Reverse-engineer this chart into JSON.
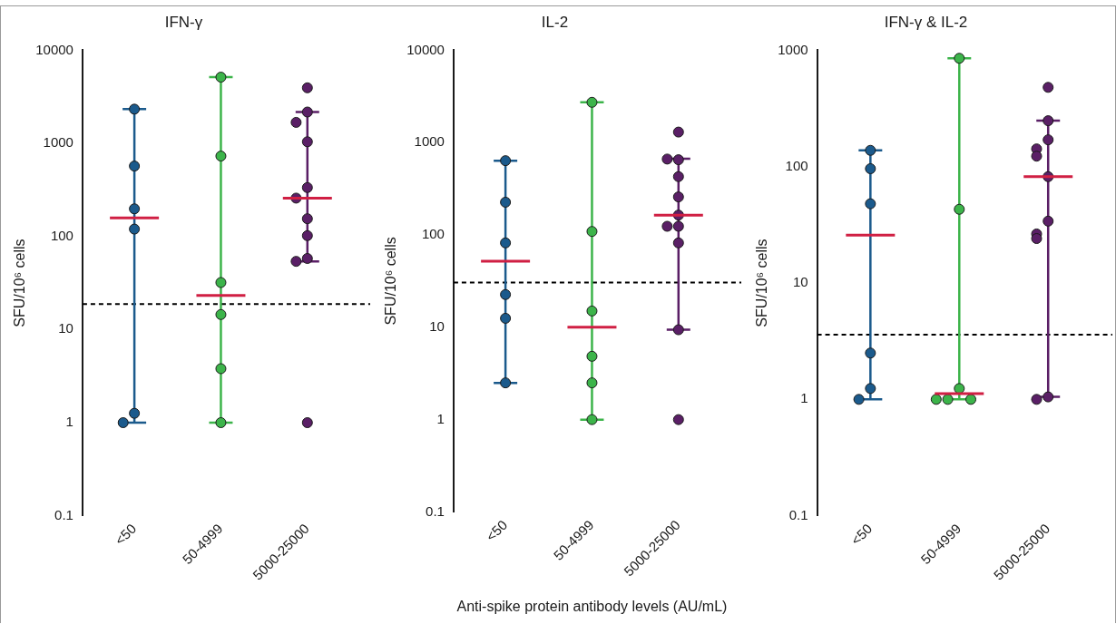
{
  "chart_data": [
    {
      "type": "box",
      "title": "IFN-γ",
      "ylabel": "SFU/10⁶ cells",
      "categories": [
        "<50",
        "50-4999",
        "5000-25000"
      ],
      "log": "y",
      "ylim": [
        0.1,
        10000
      ],
      "yticks": [
        0.1,
        1,
        10,
        100,
        1000,
        10000
      ],
      "marker": "circle",
      "ref_lines": [
        {
          "axis": "y",
          "value": 18.8,
          "color": "#000000",
          "line_style": "dashed"
        }
      ],
      "series": [
        {
          "type": "scatter",
          "color": "#1b5a8c",
          "x": [
            "<50",
            "<50",
            "<50",
            "<50",
            "<50",
            "<50"
          ],
          "values": [
            2330,
            570,
            198,
            120,
            1.26,
            1
          ]
        },
        {
          "type": "scatter",
          "color": "#3cb44a",
          "x": [
            "50-4999",
            "50-4999",
            "50-4999",
            "50-4999",
            "50-4999",
            "50-4999"
          ],
          "values": [
            5140,
            730,
            32,
            14.5,
            3.8,
            1
          ]
        },
        {
          "type": "scatter",
          "color": "#5a1f66",
          "x": [
            "5000-25000",
            "5000-25000",
            "5000-25000",
            "5000-25000",
            "5000-25000",
            "5000-25000",
            "5000-25000",
            "5000-25000",
            "5000-25000",
            "5000-25000",
            "5000-25000"
          ],
          "values": [
            3950,
            2170,
            1680,
            1040,
            335,
            258,
            155,
            102,
            58,
            54,
            1
          ]
        },
        {
          "type": "box",
          "color": "#d01f43",
          "x": [
            "<50",
            "50-4999",
            "5000-25000"
          ],
          "boxes": [
            {
              "low": 1,
              "q1": 158,
              "median": 158,
              "q3": 158,
              "high": 2330
            },
            {
              "low": 1,
              "q1": 23.3,
              "median": 23.3,
              "q3": 23.3,
              "high": 5140
            },
            {
              "low": 54,
              "q1": 258,
              "median": 258,
              "q3": 258,
              "high": 2170
            }
          ]
        }
      ]
    },
    {
      "type": "box",
      "title": "IL-2",
      "ylabel": "SFU/10⁶ cells",
      "xlabel": "Anti-spike protein antibody levels (AU/mL)",
      "categories": [
        "<50",
        "50-4999",
        "5000-25000"
      ],
      "log": "y",
      "ylim": [
        0.1,
        10000
      ],
      "yticks": [
        0.1,
        1,
        10,
        100,
        1000,
        10000
      ],
      "marker": "circle",
      "ref_lines": [
        {
          "axis": "y",
          "value": 30.6,
          "color": "#000000",
          "line_style": "dashed"
        }
      ],
      "series": [
        {
          "type": "scatter",
          "color": "#1b5a8c",
          "x": [
            "<50",
            "<50",
            "<50",
            "<50",
            "<50",
            "<50"
          ],
          "values": [
            637,
            226,
            82,
            22.6,
            12.5,
            2.5
          ]
        },
        {
          "type": "scatter",
          "color": "#3cb44a",
          "x": [
            "50-4999",
            "50-4999",
            "50-4999",
            "50-4999",
            "50-4999",
            "50-4999"
          ],
          "values": [
            2730,
            109,
            15,
            4.85,
            2.5,
            1
          ]
        },
        {
          "type": "scatter",
          "color": "#5a1f66",
          "x": [
            "5000-25000",
            "5000-25000",
            "5000-25000",
            "5000-25000",
            "5000-25000",
            "5000-25000",
            "5000-25000",
            "5000-25000",
            "5000-25000",
            "5000-25000",
            "5000-25000"
          ],
          "values": [
            1300,
            652,
            663,
            428,
            258,
            164,
            124,
            124,
            82,
            9.4,
            1
          ]
        },
        {
          "type": "box",
          "color": "#d01f43",
          "x": [
            "<50",
            "50-4999",
            "5000-25000"
          ],
          "boxes": [
            {
              "low": 2.5,
              "q1": 52,
              "median": 52,
              "q3": 52,
              "high": 637
            },
            {
              "low": 1,
              "q1": 10,
              "median": 10,
              "q3": 10,
              "high": 2730
            },
            {
              "low": 9.4,
              "q1": 164,
              "median": 164,
              "q3": 164,
              "high": 670
            }
          ]
        }
      ]
    },
    {
      "type": "box",
      "title": "IFN-γ & IL-2",
      "ylabel": "SFU/10⁶ cells",
      "categories": [
        "<50",
        "50-4999",
        "5000-25000"
      ],
      "log": "y",
      "ylim": [
        0.1,
        1000
      ],
      "yticks": [
        0.1,
        1,
        10,
        100,
        1000
      ],
      "marker": "circle",
      "ref_lines": [
        {
          "axis": "y",
          "value": 3.6,
          "color": "#000000",
          "line_style": "dashed"
        }
      ],
      "series": [
        {
          "type": "scatter",
          "color": "#1b5a8c",
          "x": [
            "<50",
            "<50",
            "<50",
            "<50",
            "<50",
            "<50"
          ],
          "values": [
            138,
            96,
            48,
            2.5,
            1.24,
            1
          ]
        },
        {
          "type": "scatter",
          "color": "#3cb44a",
          "x": [
            "50-4999",
            "50-4999",
            "50-4999",
            "50-4999",
            "50-4999",
            "50-4999"
          ],
          "values": [
            853,
            43,
            1.24,
            1,
            1,
            1
          ]
        },
        {
          "type": "scatter",
          "color": "#5a1f66",
          "x": [
            "5000-25000",
            "5000-25000",
            "5000-25000",
            "5000-25000",
            "5000-25000",
            "5000-25000",
            "5000-25000",
            "5000-25000",
            "5000-25000",
            "5000-25000",
            "5000-25000"
          ],
          "values": [
            480,
            248,
            170,
            142,
            123,
            82,
            34,
            26.4,
            24.1,
            1.05,
            1
          ]
        },
        {
          "type": "box",
          "color": "#d01f43",
          "x": [
            "<50",
            "50-4999",
            "5000-25000"
          ],
          "boxes": [
            {
              "low": 1,
              "q1": 25.8,
              "median": 25.8,
              "q3": 25.8,
              "high": 138
            },
            {
              "low": 1,
              "q1": 1.12,
              "median": 1.12,
              "q3": 1.12,
              "high": 853
            },
            {
              "low": 1.05,
              "q1": 82,
              "median": 82,
              "q3": 82,
              "high": 248
            }
          ]
        }
      ]
    }
  ]
}
